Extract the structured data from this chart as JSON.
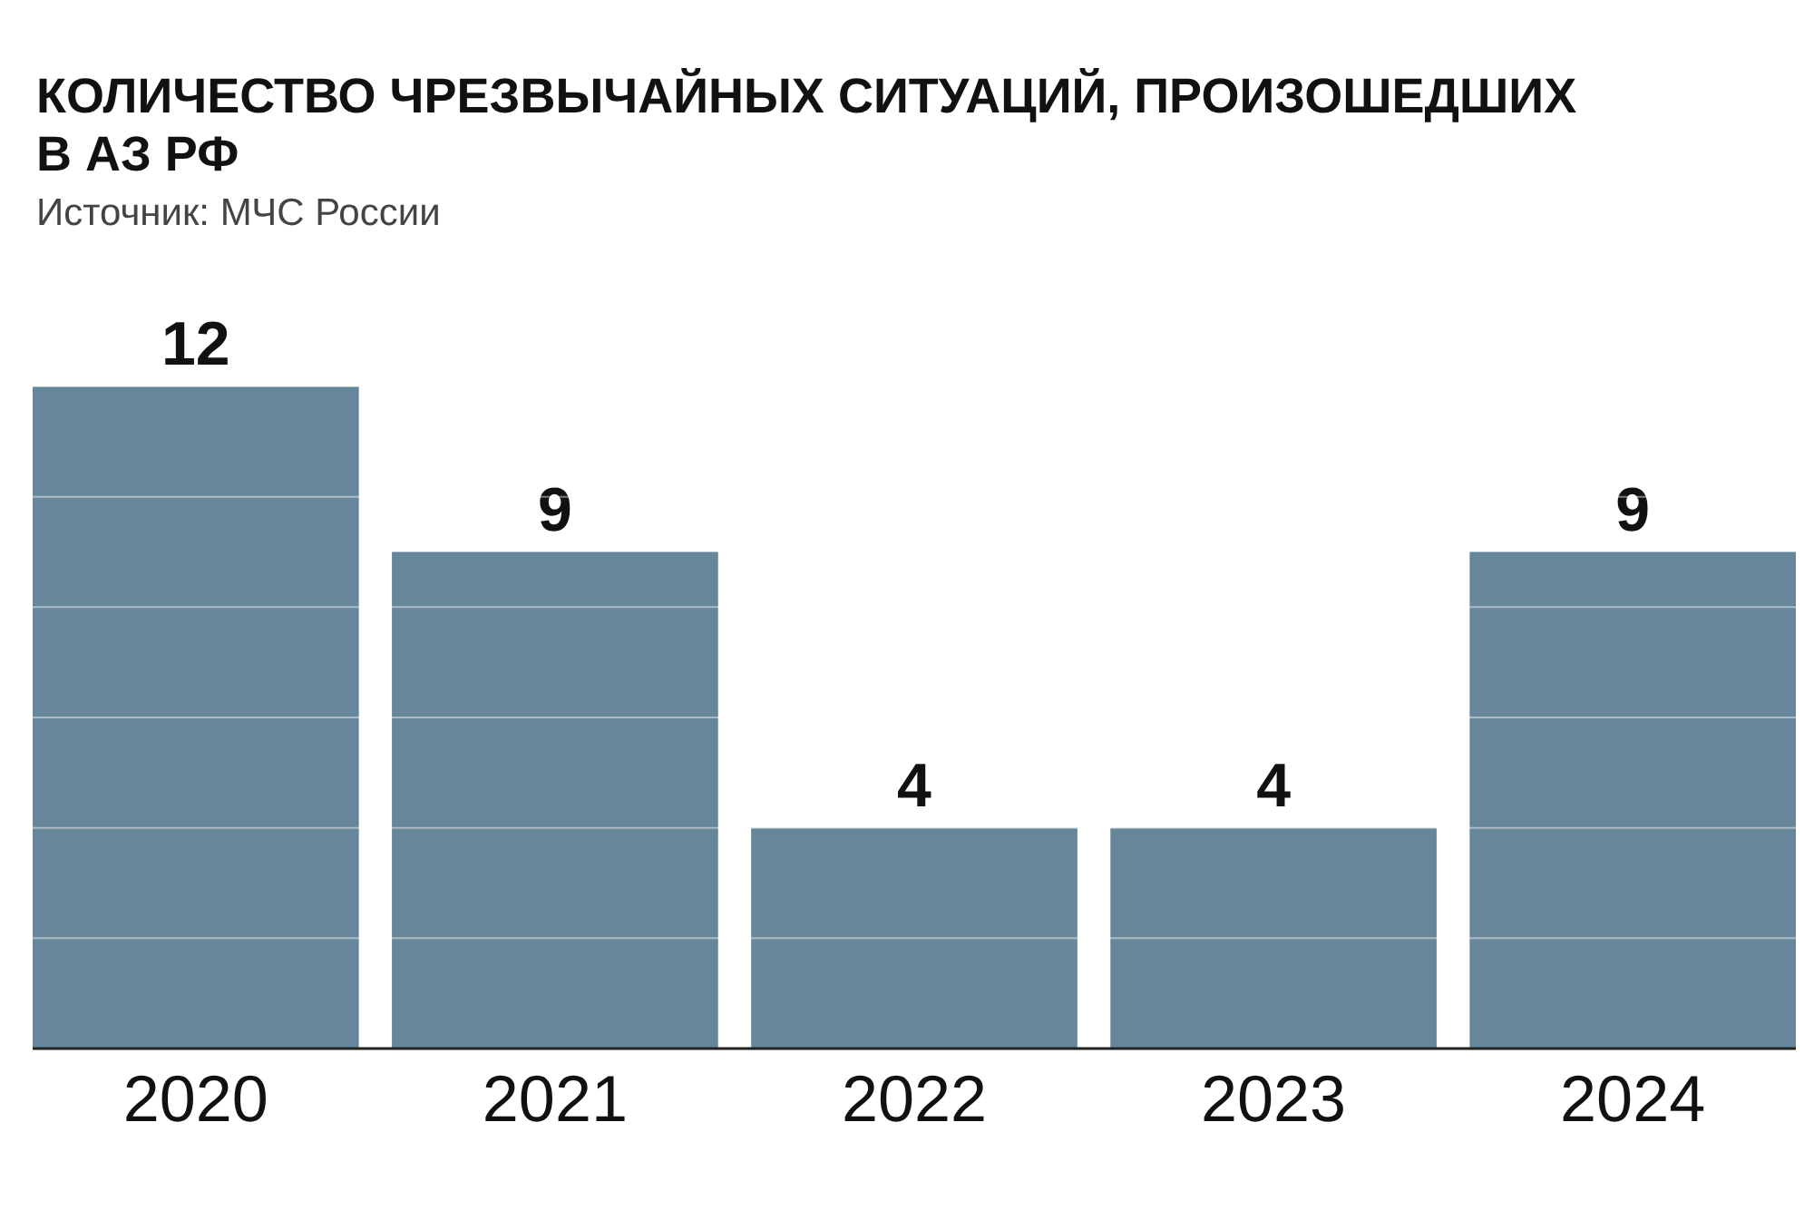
{
  "chart_data": {
    "type": "bar",
    "title": "КОЛИЧЕСТВО ЧРЕЗВЫЧАЙНЫХ СИТУАЦИЙ, ПРОИЗОШЕДШИХ В АЗ РФ",
    "annotations": [
      "Источник: МЧС России"
    ],
    "categories": [
      "2020",
      "2021",
      "2022",
      "2023",
      "2024"
    ],
    "values": [
      12,
      9,
      4,
      4,
      9
    ],
    "color": "#66869a",
    "ylim": [
      0,
      12
    ],
    "yticks": [
      {
        "value": 0,
        "label": null
      },
      {
        "value": 2,
        "label": null
      },
      {
        "value": 4,
        "label": null
      },
      {
        "value": 6,
        "label": null
      },
      {
        "value": 8,
        "label": null
      },
      {
        "value": 10,
        "label": null
      },
      {
        "value": 12,
        "label": null
      }
    ],
    "grid": "y",
    "tick_labels": "x",
    "data_labels": true
  }
}
